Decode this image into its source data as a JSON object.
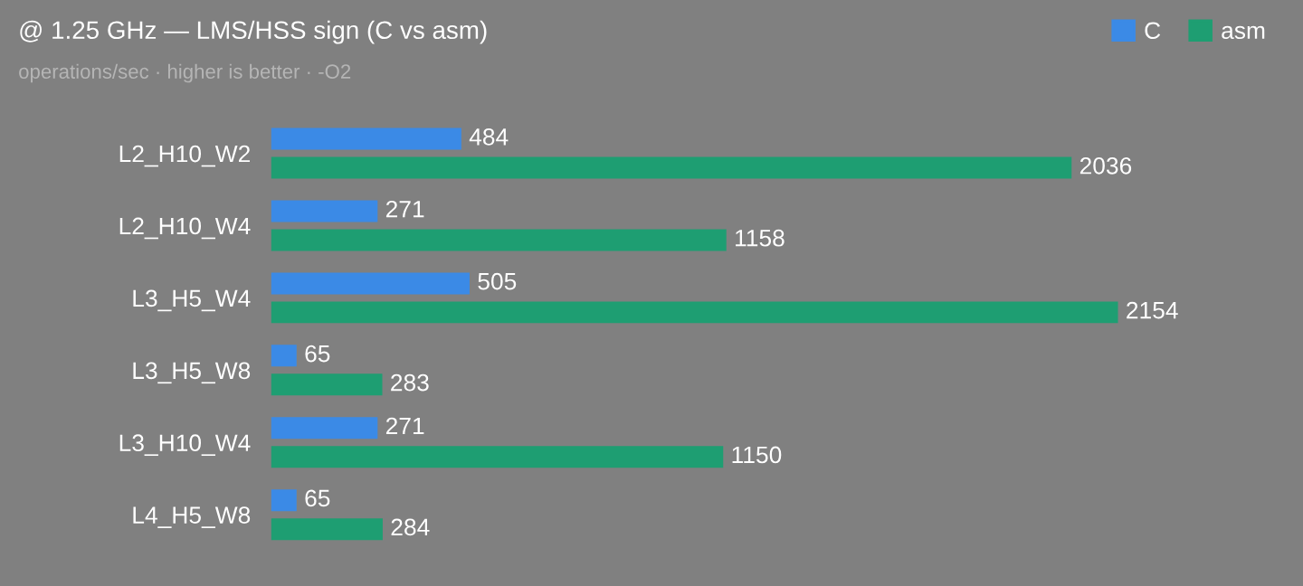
{
  "chart_data": {
    "type": "bar",
    "orientation": "horizontal",
    "title": "@ 1.25 GHz — LMS/HSS sign (C vs asm)",
    "subtitle": "operations/sec · higher is better · -O2",
    "categories": [
      "L2_H10_W2",
      "L2_H10_W4",
      "L3_H5_W4",
      "L3_H5_W8",
      "L3_H10_W4",
      "L4_H5_W8"
    ],
    "series": [
      {
        "name": "C",
        "color": "#3b8ae6",
        "values": [
          484,
          271,
          505,
          65,
          271,
          65
        ]
      },
      {
        "name": "asm",
        "color": "#1e9e72",
        "values": [
          2036,
          1158,
          2154,
          283,
          1150,
          284
        ]
      }
    ],
    "data_labels": true,
    "legend": "top right",
    "grid": false
  }
}
